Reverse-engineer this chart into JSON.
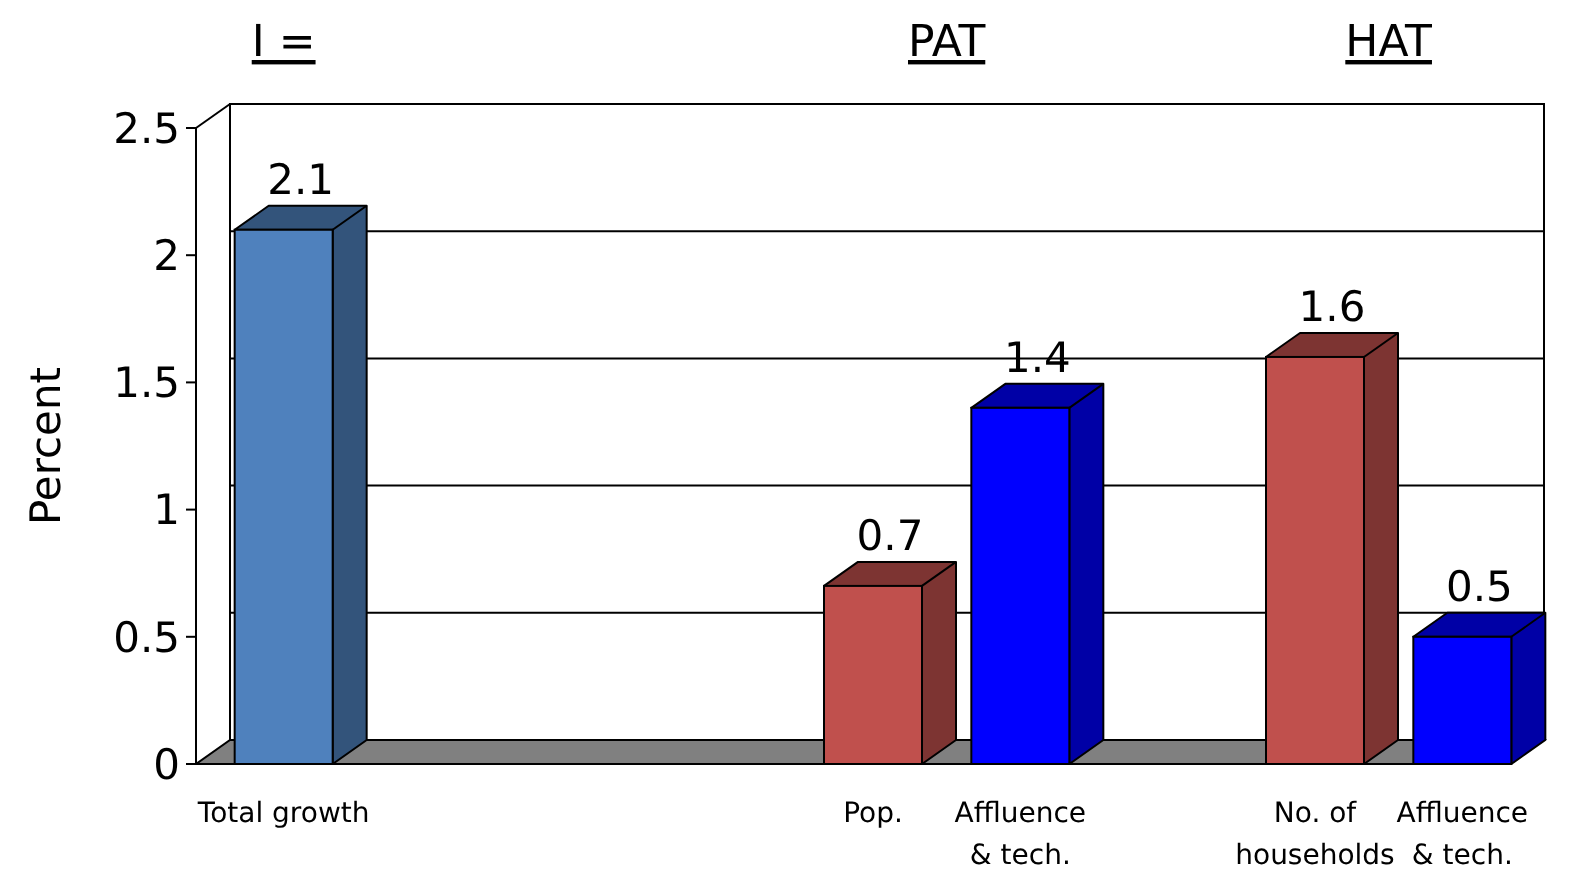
{
  "chart_data": {
    "type": "bar",
    "ylabel": "Percent",
    "categories": [
      "Total growth",
      null,
      null,
      null,
      "Pop.",
      "Affluence & tech.",
      null,
      "No. of households",
      "Affluence & tech."
    ],
    "values": [
      2.1,
      null,
      null,
      null,
      0.7,
      1.4,
      null,
      1.6,
      0.5
    ],
    "colors": [
      "#4f81bd",
      null,
      null,
      null,
      "#c0504d",
      "#0000ff",
      null,
      "#c0504d",
      "#0000ff"
    ],
    "ylim": [
      0,
      2.5
    ],
    "yticks": [
      0,
      0.5,
      1,
      1.5,
      2,
      2.5
    ],
    "grid": "y",
    "data_labels": true,
    "annotations": [
      "I =",
      "PAT",
      "HAT"
    ]
  }
}
